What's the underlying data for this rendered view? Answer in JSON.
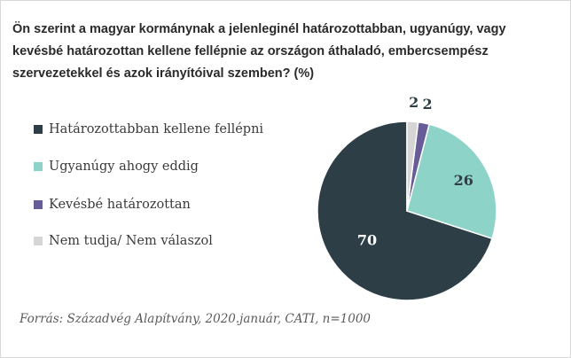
{
  "chart_data": {
    "type": "pie",
    "title": "Ön szerint a magyar kormánynak a jelenleginél határozottabban, ugyanúgy, vagy kevésbé határozottan kellene fellépnie az országon áthaladó, embercsempész szervezetekkel és azok irányítóival szemben? (%)",
    "categories": [
      "Határozottabban kellene fellépni",
      "Ugyanúgy ahogy eddig",
      "Kevésbé határozottan",
      "Nem tudja/ Nem válaszol"
    ],
    "values": [
      70,
      26,
      2,
      2
    ],
    "data_labels": [
      "70",
      "26",
      "2",
      "2"
    ],
    "colors": [
      "#2d3e46",
      "#8ed3c8",
      "#675c98",
      "#d5d5d5"
    ],
    "label_colors": [
      "#ffffff",
      "#2d3e46",
      "#2d3e46",
      "#2d3e46"
    ],
    "legend_position": "left"
  },
  "source": "Forrás: Századvég Alapítvány, 2020.január, CATI, n=1000"
}
